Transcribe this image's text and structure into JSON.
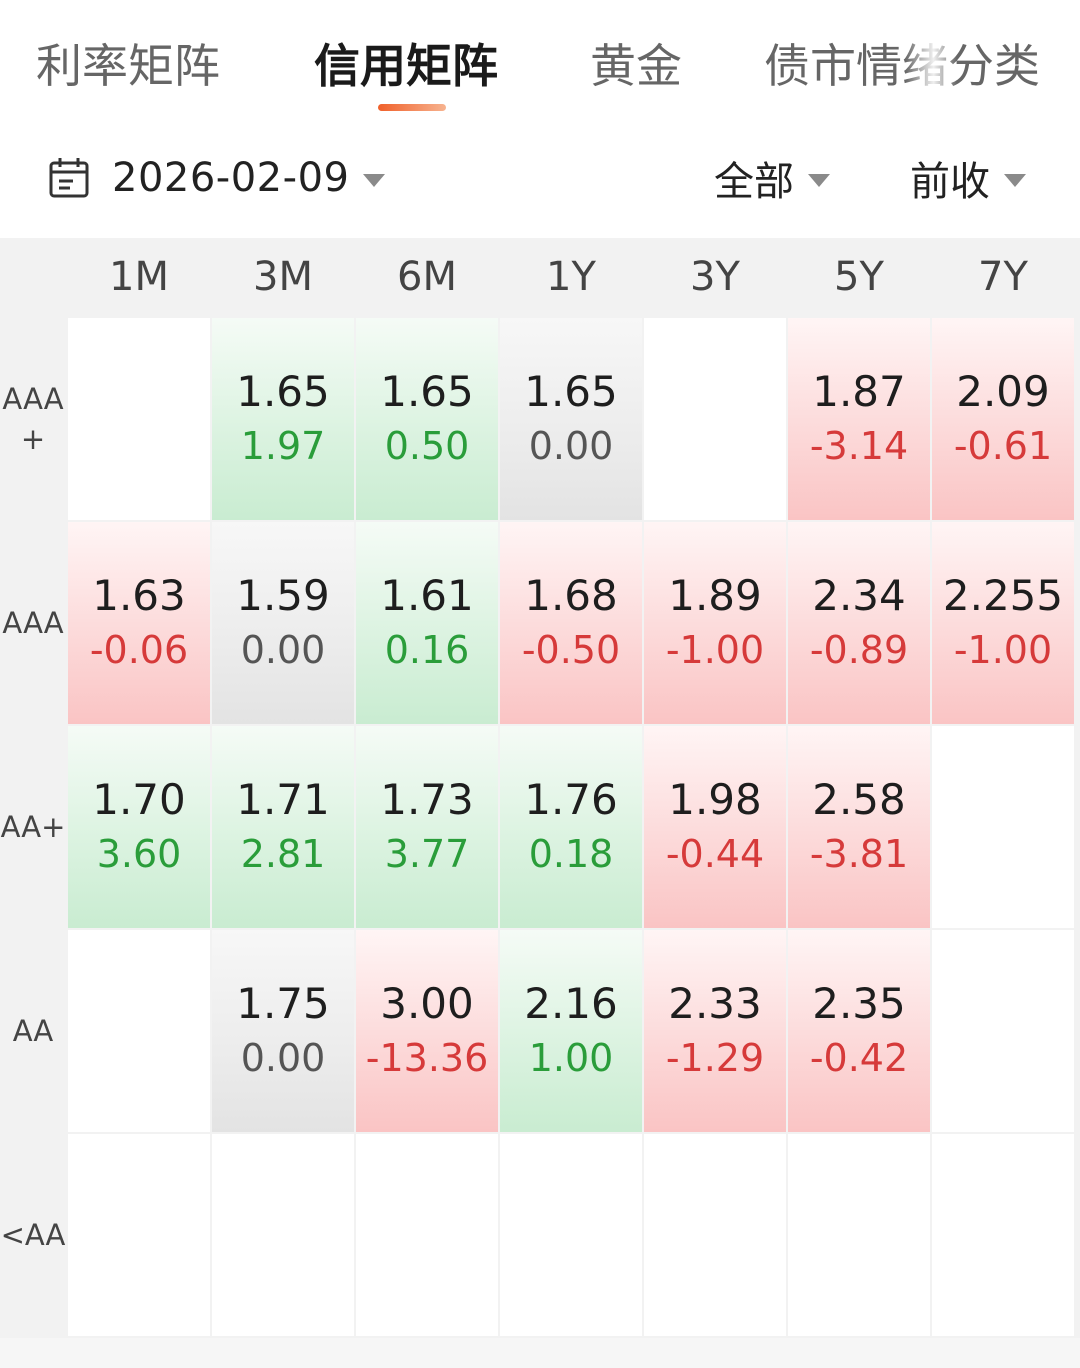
{
  "tabs": [
    {
      "label": "利率矩阵",
      "active": false
    },
    {
      "label": "信用矩阵",
      "active": true
    },
    {
      "label": "黄金",
      "active": false
    },
    {
      "label": "债市情绪分类",
      "active": false
    }
  ],
  "filters": {
    "date": "2026-02-09",
    "scope": "全部",
    "basis": "前收",
    "calendar_icon": "calendar-icon"
  },
  "colors": {
    "up_bg": "#fac4c4",
    "down_bg": "#c9ecd1",
    "flat_bg": "#e3e3e3",
    "neg_text": "#d63a3a",
    "pos_text": "#2a9d3a",
    "accent": "#f0602a"
  },
  "columns": [
    "1M",
    "3M",
    "6M",
    "1Y",
    "3Y",
    "5Y",
    "7Y"
  ],
  "rows": [
    {
      "label": "AAA\n+",
      "cells": [
        null,
        {
          "value": "1.65",
          "change": "1.97",
          "state": "down"
        },
        {
          "value": "1.65",
          "change": "0.50",
          "state": "down"
        },
        {
          "value": "1.65",
          "change": "0.00",
          "state": "flat"
        },
        null,
        {
          "value": "1.87",
          "change": "-3.14",
          "state": "up"
        },
        {
          "value": "2.09",
          "change": "-0.61",
          "state": "up"
        }
      ]
    },
    {
      "label": "AAA",
      "cells": [
        {
          "value": "1.63",
          "change": "-0.06",
          "state": "up"
        },
        {
          "value": "1.59",
          "change": "0.00",
          "state": "flat"
        },
        {
          "value": "1.61",
          "change": "0.16",
          "state": "down"
        },
        {
          "value": "1.68",
          "change": "-0.50",
          "state": "up"
        },
        {
          "value": "1.89",
          "change": "-1.00",
          "state": "up"
        },
        {
          "value": "2.34",
          "change": "-0.89",
          "state": "up"
        },
        {
          "value": "2.255",
          "change": "-1.00",
          "state": "up"
        }
      ]
    },
    {
      "label": "AA+",
      "cells": [
        {
          "value": "1.70",
          "change": "3.60",
          "state": "down"
        },
        {
          "value": "1.71",
          "change": "2.81",
          "state": "down"
        },
        {
          "value": "1.73",
          "change": "3.77",
          "state": "down"
        },
        {
          "value": "1.76",
          "change": "0.18",
          "state": "down"
        },
        {
          "value": "1.98",
          "change": "-0.44",
          "state": "up"
        },
        {
          "value": "2.58",
          "change": "-3.81",
          "state": "up"
        },
        null
      ]
    },
    {
      "label": "AA",
      "cells": [
        null,
        {
          "value": "1.75",
          "change": "0.00",
          "state": "flat"
        },
        {
          "value": "3.00",
          "change": "-13.36",
          "state": "up"
        },
        {
          "value": "2.16",
          "change": "1.00",
          "state": "down"
        },
        {
          "value": "2.33",
          "change": "-1.29",
          "state": "up"
        },
        {
          "value": "2.35",
          "change": "-0.42",
          "state": "up"
        },
        null
      ]
    },
    {
      "label": "<AA",
      "cells": [
        null,
        null,
        null,
        null,
        null,
        null,
        null
      ]
    }
  ]
}
